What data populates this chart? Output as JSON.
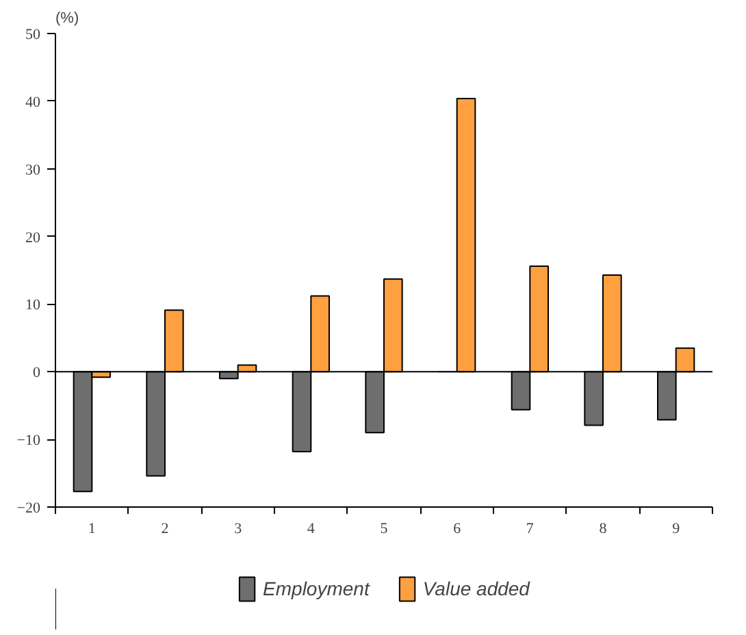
{
  "chart_data": {
    "type": "bar",
    "ylabel": "(%)",
    "categories": [
      "1",
      "2",
      "3",
      "4",
      "5",
      "6",
      "7",
      "8",
      "9"
    ],
    "series": [
      {
        "name": "Employment",
        "color": "#6e6e6e",
        "values": [
          -17.7,
          -15.4,
          -1,
          -11.8,
          -9,
          0,
          -5.6,
          -7.9,
          -7.1
        ]
      },
      {
        "name": "Value added",
        "color": "#ffa040",
        "values": [
          -0.8,
          9.1,
          1,
          11.2,
          13.7,
          40.4,
          15.6,
          14.3,
          3.5
        ]
      }
    ],
    "ylim": [
      -20,
      50
    ],
    "yticks": [
      -20,
      -10,
      0,
      10,
      20,
      30,
      40,
      50
    ],
    "ref_lines": [
      {
        "axis": "y",
        "value": 0,
        "color": "#000000"
      }
    ],
    "grid": false,
    "legend": "bottom"
  }
}
